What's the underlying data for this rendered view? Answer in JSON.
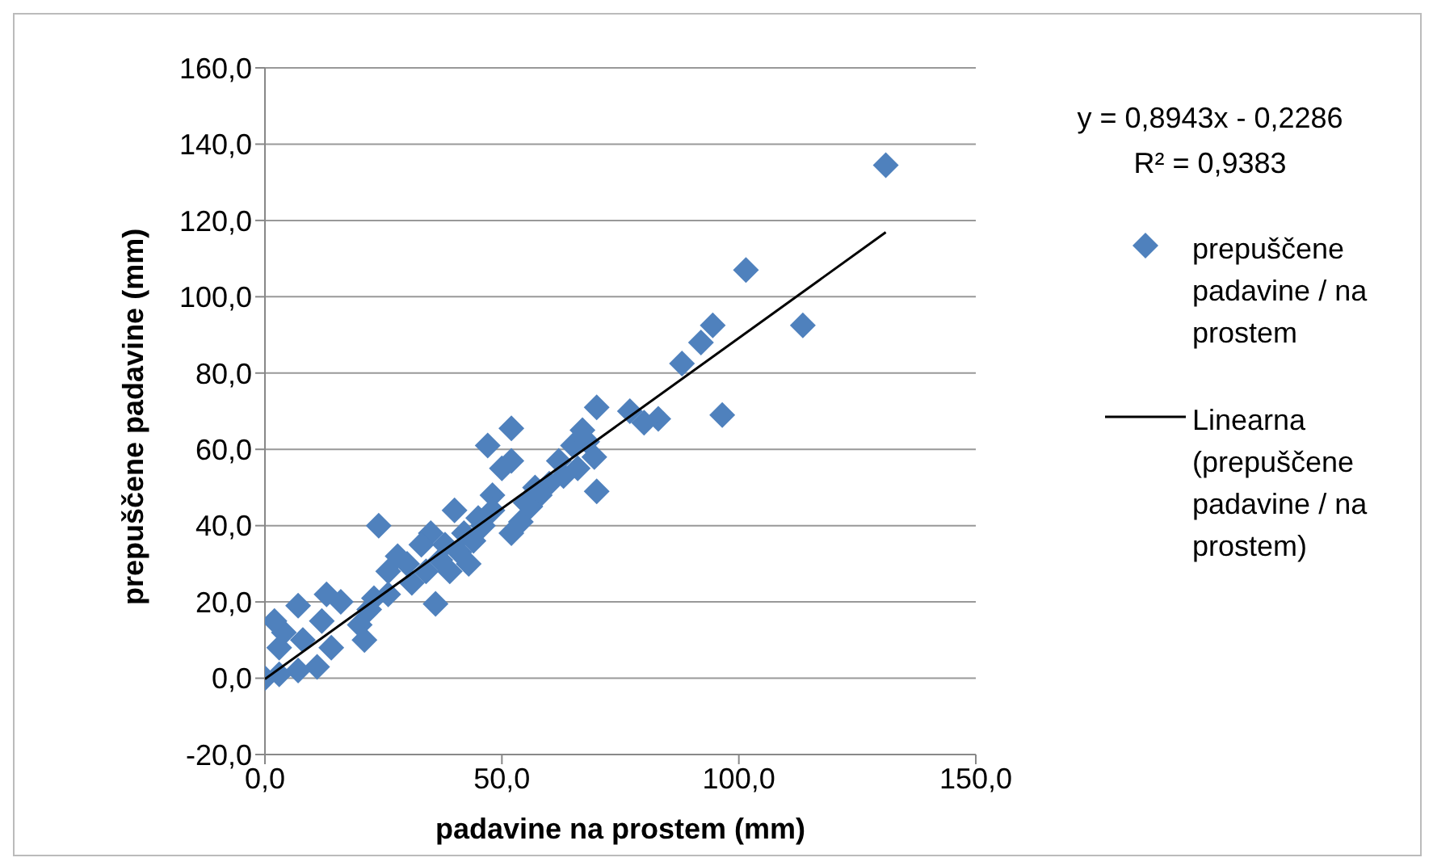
{
  "chart_data": {
    "type": "scatter",
    "xlabel": "padavine na prostem (mm)",
    "ylabel": "prepuščene padavine (mm)",
    "xlim": [
      0,
      150
    ],
    "xticks": [
      {
        "value": 0,
        "label": "0,0"
      },
      {
        "value": 50,
        "label": "50,0"
      },
      {
        "value": 100,
        "label": "100,0"
      },
      {
        "value": 150,
        "label": "150,0"
      }
    ],
    "ylim": [
      -20,
      160
    ],
    "yticks": [
      {
        "value": -20,
        "label": "-20,0"
      },
      {
        "value": 0,
        "label": "0,0"
      },
      {
        "value": 20,
        "label": "20,0"
      },
      {
        "value": 40,
        "label": "40,0"
      },
      {
        "value": 60,
        "label": "60,0"
      },
      {
        "value": 80,
        "label": "80,0"
      },
      {
        "value": 100,
        "label": "100,0"
      },
      {
        "value": 120,
        "label": "120,0"
      },
      {
        "value": 140,
        "label": "140,0"
      },
      {
        "value": 160,
        "label": "160,0"
      }
    ],
    "grid": "y",
    "legend": "right",
    "annotations": [
      "y = 0,8943x - 0,2286",
      "R² = 0,9383"
    ],
    "series": [
      {
        "name": "prepuščene padavine / na prostem",
        "marker": "diamond",
        "color": "#4f81bd",
        "x": [
          131,
          101.5,
          113.5,
          94.5,
          92,
          88,
          96.5,
          83,
          80,
          77,
          70,
          69.5,
          70,
          67,
          65,
          62,
          52,
          47,
          52,
          50,
          48,
          52,
          54,
          56,
          58,
          60,
          45,
          40,
          42,
          38,
          36,
          35,
          33,
          30,
          28,
          26,
          24,
          26,
          22,
          20,
          21,
          16,
          13,
          12,
          11,
          8,
          7,
          4,
          3,
          2,
          0,
          3,
          7,
          14,
          23,
          31,
          34,
          37,
          39,
          41,
          43,
          44,
          46,
          48,
          55,
          57,
          63,
          66,
          68
        ],
        "values": [
          134.5,
          107,
          92.5,
          92.5,
          88,
          82.5,
          69,
          68,
          67,
          70,
          71,
          58,
          49,
          65,
          61,
          57,
          65.5,
          61,
          57,
          55,
          48,
          38,
          41,
          45,
          48,
          51,
          42,
          44,
          38,
          35,
          19.5,
          38,
          35,
          30,
          32,
          28,
          40,
          22,
          18,
          14,
          10,
          20,
          22,
          15,
          3,
          10,
          19,
          12,
          8,
          15,
          0,
          1,
          2,
          8,
          21,
          25,
          28,
          31,
          28,
          33,
          30,
          36,
          40,
          44,
          46,
          50,
          53,
          55,
          62
        ]
      },
      {
        "name": "Linearna (prepuščene padavine / na prostem)",
        "type": "line",
        "marker": "none",
        "line_style": "solid",
        "color": "#000000",
        "x": [
          0,
          131
        ],
        "values": [
          -0.2,
          116.9
        ]
      }
    ]
  }
}
